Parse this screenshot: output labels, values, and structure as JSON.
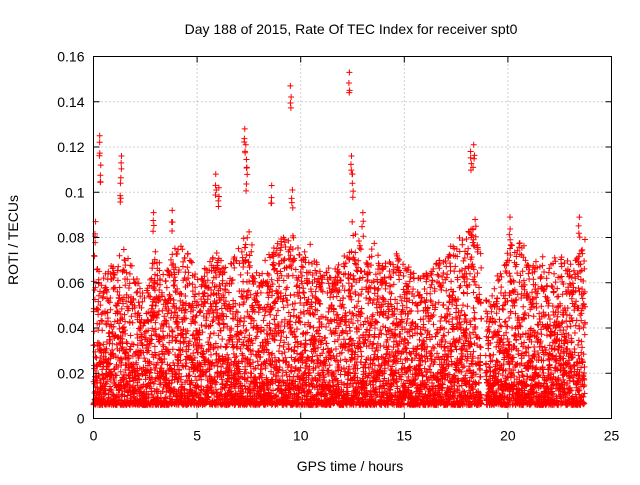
{
  "chart_data": {
    "type": "scatter",
    "title": "Day 188 of 2015, Rate Of TEC Index for receiver spt0",
    "xlabel": "GPS time / hours",
    "ylabel": "ROTI / TECUs",
    "xlim": [
      0,
      25
    ],
    "ylim": [
      0,
      0.16
    ],
    "xticks": [
      0,
      5,
      10,
      15,
      20,
      25
    ],
    "xtick_labels": [
      "0",
      "5",
      "10",
      "15",
      "20",
      "25"
    ],
    "yticks": [
      0,
      0.02,
      0.04,
      0.06,
      0.08,
      0.1,
      0.12,
      0.14,
      0.16
    ],
    "ytick_labels": [
      "0",
      "0.02",
      "0.04",
      "0.06",
      "0.08",
      "0.1",
      "0.12",
      "0.14",
      "0.16"
    ],
    "grid": true,
    "marker": "+",
    "color": "#ff0000",
    "notable_points": [
      {
        "x": 0.1,
        "y": 0.087
      },
      {
        "x": 0.3,
        "y": 0.125
      },
      {
        "x": 0.35,
        "y": 0.112
      },
      {
        "x": 1.35,
        "y": 0.116
      },
      {
        "x": 1.3,
        "y": 0.104
      },
      {
        "x": 2.9,
        "y": 0.091
      },
      {
        "x": 3.8,
        "y": 0.092
      },
      {
        "x": 5.9,
        "y": 0.108
      },
      {
        "x": 6.05,
        "y": 0.102
      },
      {
        "x": 7.3,
        "y": 0.128
      },
      {
        "x": 7.35,
        "y": 0.121
      },
      {
        "x": 7.4,
        "y": 0.111
      },
      {
        "x": 8.6,
        "y": 0.103
      },
      {
        "x": 9.5,
        "y": 0.147
      },
      {
        "x": 9.6,
        "y": 0.101
      },
      {
        "x": 12.35,
        "y": 0.153
      },
      {
        "x": 12.45,
        "y": 0.116
      },
      {
        "x": 12.5,
        "y": 0.108
      },
      {
        "x": 13.0,
        "y": 0.091
      },
      {
        "x": 18.2,
        "y": 0.118
      },
      {
        "x": 18.35,
        "y": 0.121
      },
      {
        "x": 20.1,
        "y": 0.089
      },
      {
        "x": 23.45,
        "y": 0.089
      }
    ],
    "series": [
      {
        "name": "ROTI",
        "generated_from_profile": true,
        "sample_step_hours": 0.05,
        "points_per_step": 14,
        "gap_hours": [
          18.75,
          18.92
        ],
        "profile_hours": [
          0.0,
          0.5,
          1.0,
          1.5,
          2.0,
          2.5,
          3.0,
          3.5,
          4.0,
          4.5,
          5.0,
          5.5,
          6.0,
          6.5,
          7.0,
          7.5,
          8.0,
          8.5,
          9.0,
          9.5,
          10.0,
          10.5,
          11.0,
          11.5,
          12.0,
          12.5,
          13.0,
          13.5,
          14.0,
          14.5,
          15.0,
          15.5,
          16.0,
          16.5,
          17.0,
          17.5,
          18.0,
          18.5,
          19.0,
          19.5,
          20.0,
          20.5,
          21.0,
          21.5,
          22.0,
          22.5,
          23.0,
          23.5,
          23.75
        ],
        "profile_max": [
          0.07,
          0.06,
          0.065,
          0.072,
          0.06,
          0.055,
          0.07,
          0.06,
          0.075,
          0.07,
          0.06,
          0.065,
          0.07,
          0.06,
          0.075,
          0.08,
          0.06,
          0.07,
          0.075,
          0.08,
          0.07,
          0.075,
          0.06,
          0.065,
          0.065,
          0.085,
          0.07,
          0.075,
          0.065,
          0.07,
          0.065,
          0.06,
          0.06,
          0.065,
          0.07,
          0.075,
          0.08,
          0.085,
          0.045,
          0.06,
          0.07,
          0.08,
          0.065,
          0.07,
          0.065,
          0.07,
          0.065,
          0.07,
          0.078
        ],
        "min_value": 0.002
      }
    ]
  }
}
